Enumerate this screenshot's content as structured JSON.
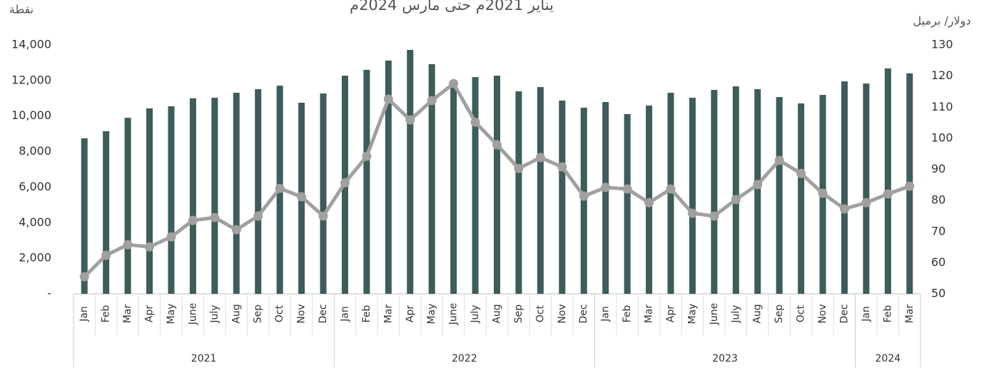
{
  "chart_data": {
    "type": "bar-line",
    "title": "يناير 2021م حتى مارس 2024م",
    "y_label": "نقطة",
    "y2_label": "دولار/ برميل",
    "groups": [
      {
        "label": "2021",
        "categories": [
          "Jan",
          "Feb",
          "Mar",
          "Apr",
          "May",
          "June",
          "July",
          "Aug",
          "Sep",
          "Oct",
          "Nov",
          "Dec"
        ]
      },
      {
        "label": "2022",
        "categories": [
          "Jan",
          "Feb",
          "Mar",
          "Apr",
          "May",
          "June",
          "July",
          "Aug",
          "Sep",
          "Oct",
          "Nov",
          "Dec"
        ]
      },
      {
        "label": "2023",
        "categories": [
          "Jan",
          "Feb",
          "Mar",
          "Apr",
          "May",
          "June",
          "July",
          "Aug",
          "Sep",
          "Oct",
          "Nov",
          "Dec"
        ]
      },
      {
        "label": "2024",
        "categories": [
          "Jan",
          "Feb",
          "Mar"
        ]
      }
    ],
    "series": [
      {
        "type": "bar",
        "color": "#3d5c5a",
        "axis": "y",
        "values": [
          8750,
          9150,
          9900,
          10430,
          10550,
          11000,
          11030,
          11310,
          11510,
          11710,
          10750,
          11270,
          12270,
          12600,
          13120,
          13720,
          12920,
          11800,
          12190,
          12270,
          11390,
          11630,
          10870,
          10470,
          10790,
          10110,
          10590,
          11310,
          11030,
          11470,
          11670,
          11510,
          11070,
          10710,
          11190,
          11950,
          11830,
          12680,
          12400
        ]
      },
      {
        "type": "line",
        "color": "#a0a0a0",
        "axis": "y2",
        "values": [
          55.5,
          62.4,
          65.8,
          65.1,
          68.3,
          73.6,
          74.5,
          70.6,
          75.0,
          83.9,
          81.2,
          75.0,
          85.7,
          94.2,
          112.6,
          105.9,
          112.1,
          117.6,
          105.2,
          97.9,
          90.3,
          93.8,
          90.8,
          81.4,
          84.2,
          83.7,
          79.3,
          83.7,
          75.9,
          75.0,
          80.3,
          85.1,
          92.9,
          88.7,
          82.3,
          77.3,
          79.3,
          82.1,
          84.6
        ]
      }
    ],
    "ylim": [
      0,
      14000
    ],
    "yticks": [
      {
        "value": 0,
        "label": "-"
      },
      {
        "value": 2000,
        "label": "2,000"
      },
      {
        "value": 4000,
        "label": "4,000"
      },
      {
        "value": 6000,
        "label": "6,000"
      },
      {
        "value": 8000,
        "label": "8,000"
      },
      {
        "value": 10000,
        "label": "10,000"
      },
      {
        "value": 12000,
        "label": "12,000"
      },
      {
        "value": 14000,
        "label": "14,000"
      }
    ],
    "y2lim": [
      50,
      130
    ],
    "y2ticks": [
      50,
      60,
      70,
      80,
      90,
      100,
      110,
      120,
      130
    ],
    "grid": false
  }
}
